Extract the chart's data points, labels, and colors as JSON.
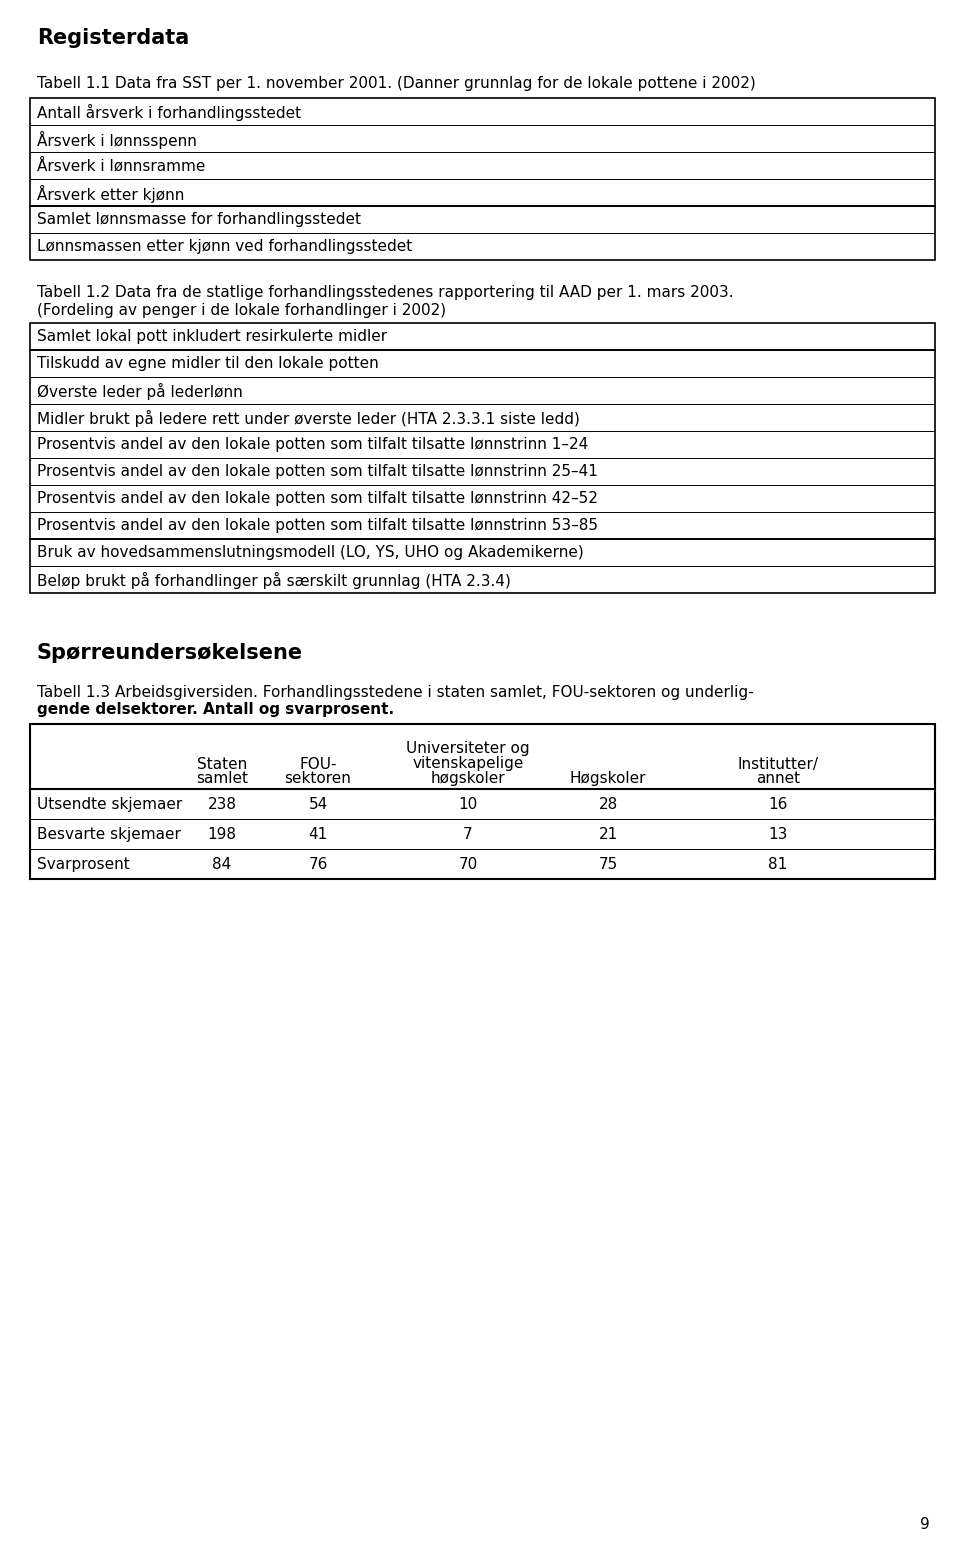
{
  "page_bg": "#ffffff",
  "section1_title": "Registerdata",
  "tabell11_label": "Tabell 1.1 Data fra SST per 1. november 2001. (Danner grunnlag for de lokale pottene i 2002)",
  "tabell11_group1": [
    "Antall årsverk i forhandlingsstedet",
    "Årsverk i lønnsspenn",
    "Årsverk i lønnsramme",
    "Årsverk etter kjønn"
  ],
  "tabell11_group2": [
    "Samlet lønnsmasse for forhandlingsstedet",
    "Lønnsmassen etter kjønn ved forhandlingsstedet"
  ],
  "tabell12_label": "Tabell 1.2 Data fra de statlige forhandlingsstedenes rapportering til AAD per 1. mars 2003.",
  "tabell12_subtitle": "(Fordeling av penger i de lokale forhandlinger i 2002)",
  "tabell12_group1": [
    "Samlet lokal pott inkludert resirkulerte midler"
  ],
  "tabell12_group2": [
    "Tilskudd av egne midler til den lokale potten",
    "Øverste leder på lederlønn",
    "Midler brukt på ledere rett under øverste leder (HTA 2.3.3.1 siste ledd)",
    "Prosentvis andel av den lokale potten som tilfalt tilsatte lønnstrinn 1–24",
    "Prosentvis andel av den lokale potten som tilfalt tilsatte lønnstrinn 25–41",
    "Prosentvis andel av den lokale potten som tilfalt tilsatte lønnstrinn 42–52",
    "Prosentvis andel av den lokale potten som tilfalt tilsatte lønnstrinn 53–85"
  ],
  "tabell12_group3": [
    "Bruk av hovedsammenslutningsmodell (LO, YS, UHO og Akademikerne)",
    "Beløp brukt på forhandlinger på særskilt grunnlag (HTA 2.3.4)"
  ],
  "section2_title": "Spørreundersøkelsene",
  "tabell13_line1": "Tabell 1.3 Arbeidsgiversiden. Forhandlingsstedene i staten samlet, FOU-sektoren og underlig-",
  "tabell13_line2": "gende delsektorer. Antall og svarprosent.",
  "tabell13_col_headers_display": {
    "col1": [
      "Staten",
      "samlet"
    ],
    "col2": [
      "FOU-",
      "sektoren"
    ],
    "col3": [
      "Universiteter og",
      "vitenskapelige",
      "høgskoler"
    ],
    "col4": [
      "Høgskoler"
    ],
    "col5": [
      "Institutter/",
      "annet"
    ]
  },
  "tabell13_rows": [
    [
      "Utsendte skjemaer",
      "238",
      "54",
      "10",
      "28",
      "16"
    ],
    [
      "Besvarte skjemaer",
      "198",
      "41",
      "7",
      "21",
      "13"
    ],
    [
      "Svarprosent",
      "84",
      "76",
      "70",
      "75",
      "81"
    ]
  ],
  "page_number": "9",
  "font_size_body": 11,
  "font_size_section": 15
}
